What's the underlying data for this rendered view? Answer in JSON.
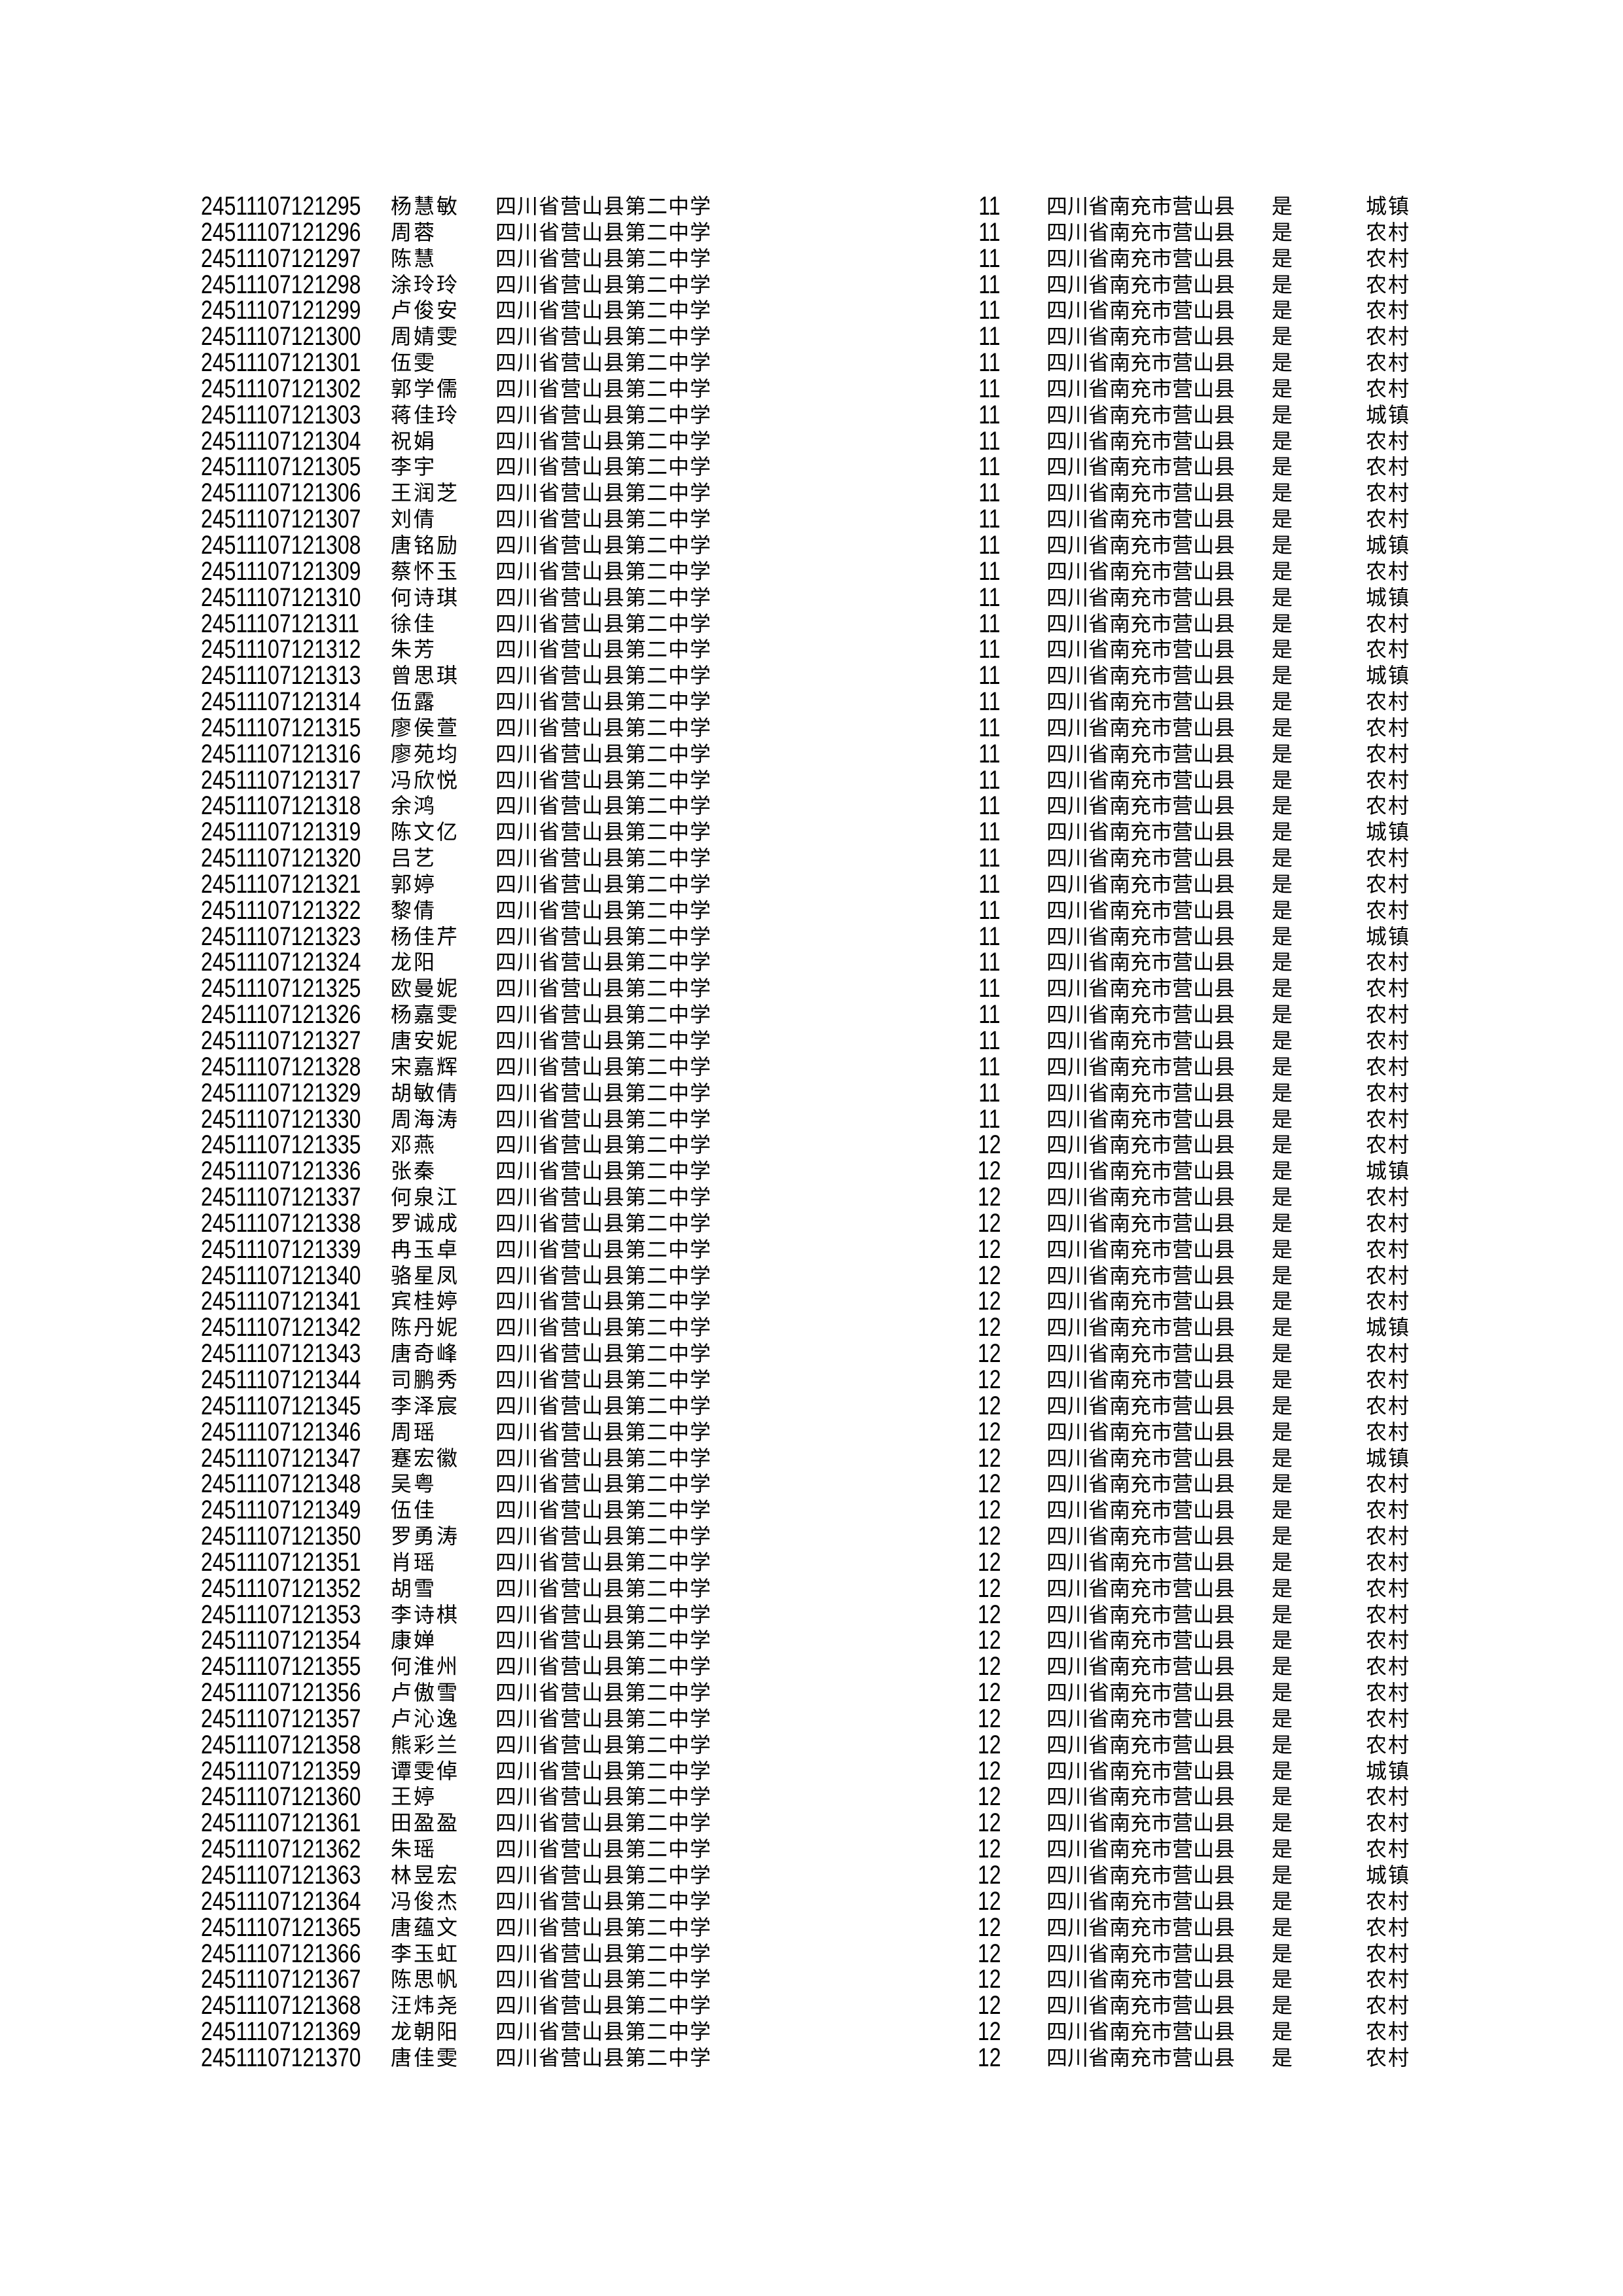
{
  "page": {
    "background": "#ffffff",
    "text_color": "#000000"
  },
  "table": {
    "columns": [
      "exam_id",
      "name",
      "school",
      "grade",
      "region",
      "confirm_flag",
      "residence_type"
    ],
    "rows": [
      [
        "24511107121295",
        "杨慧敏",
        "四川省营山县第二中学",
        "11",
        "四川省南充市营山县",
        "是",
        "城镇"
      ],
      [
        "24511107121296",
        "周蓉",
        "四川省营山县第二中学",
        "11",
        "四川省南充市营山县",
        "是",
        "农村"
      ],
      [
        "24511107121297",
        "陈慧",
        "四川省营山县第二中学",
        "11",
        "四川省南充市营山县",
        "是",
        "农村"
      ],
      [
        "24511107121298",
        "涂玲玲",
        "四川省营山县第二中学",
        "11",
        "四川省南充市营山县",
        "是",
        "农村"
      ],
      [
        "24511107121299",
        "卢俊安",
        "四川省营山县第二中学",
        "11",
        "四川省南充市营山县",
        "是",
        "农村"
      ],
      [
        "24511107121300",
        "周婧雯",
        "四川省营山县第二中学",
        "11",
        "四川省南充市营山县",
        "是",
        "农村"
      ],
      [
        "24511107121301",
        "伍雯",
        "四川省营山县第二中学",
        "11",
        "四川省南充市营山县",
        "是",
        "农村"
      ],
      [
        "24511107121302",
        "郭学儒",
        "四川省营山县第二中学",
        "11",
        "四川省南充市营山县",
        "是",
        "农村"
      ],
      [
        "24511107121303",
        "蒋佳玲",
        "四川省营山县第二中学",
        "11",
        "四川省南充市营山县",
        "是",
        "城镇"
      ],
      [
        "24511107121304",
        "祝娟",
        "四川省营山县第二中学",
        "11",
        "四川省南充市营山县",
        "是",
        "农村"
      ],
      [
        "24511107121305",
        "李宇",
        "四川省营山县第二中学",
        "11",
        "四川省南充市营山县",
        "是",
        "农村"
      ],
      [
        "24511107121306",
        "王润芝",
        "四川省营山县第二中学",
        "11",
        "四川省南充市营山县",
        "是",
        "农村"
      ],
      [
        "24511107121307",
        "刘倩",
        "四川省营山县第二中学",
        "11",
        "四川省南充市营山县",
        "是",
        "农村"
      ],
      [
        "24511107121308",
        "唐铭励",
        "四川省营山县第二中学",
        "11",
        "四川省南充市营山县",
        "是",
        "城镇"
      ],
      [
        "24511107121309",
        "蔡怀玉",
        "四川省营山县第二中学",
        "11",
        "四川省南充市营山县",
        "是",
        "农村"
      ],
      [
        "24511107121310",
        "何诗琪",
        "四川省营山县第二中学",
        "11",
        "四川省南充市营山县",
        "是",
        "城镇"
      ],
      [
        "24511107121311",
        "徐佳",
        "四川省营山县第二中学",
        "11",
        "四川省南充市营山县",
        "是",
        "农村"
      ],
      [
        "24511107121312",
        "朱芳",
        "四川省营山县第二中学",
        "11",
        "四川省南充市营山县",
        "是",
        "农村"
      ],
      [
        "24511107121313",
        "曾思琪",
        "四川省营山县第二中学",
        "11",
        "四川省南充市营山县",
        "是",
        "城镇"
      ],
      [
        "24511107121314",
        "伍露",
        "四川省营山县第二中学",
        "11",
        "四川省南充市营山县",
        "是",
        "农村"
      ],
      [
        "24511107121315",
        "廖侯萱",
        "四川省营山县第二中学",
        "11",
        "四川省南充市营山县",
        "是",
        "农村"
      ],
      [
        "24511107121316",
        "廖苑均",
        "四川省营山县第二中学",
        "11",
        "四川省南充市营山县",
        "是",
        "农村"
      ],
      [
        "24511107121317",
        "冯欣悦",
        "四川省营山县第二中学",
        "11",
        "四川省南充市营山县",
        "是",
        "农村"
      ],
      [
        "24511107121318",
        "余鸿",
        "四川省营山县第二中学",
        "11",
        "四川省南充市营山县",
        "是",
        "农村"
      ],
      [
        "24511107121319",
        "陈文亿",
        "四川省营山县第二中学",
        "11",
        "四川省南充市营山县",
        "是",
        "城镇"
      ],
      [
        "24511107121320",
        "吕艺",
        "四川省营山县第二中学",
        "11",
        "四川省南充市营山县",
        "是",
        "农村"
      ],
      [
        "24511107121321",
        "郭婷",
        "四川省营山县第二中学",
        "11",
        "四川省南充市营山县",
        "是",
        "农村"
      ],
      [
        "24511107121322",
        "黎倩",
        "四川省营山县第二中学",
        "11",
        "四川省南充市营山县",
        "是",
        "农村"
      ],
      [
        "24511107121323",
        "杨佳芹",
        "四川省营山县第二中学",
        "11",
        "四川省南充市营山县",
        "是",
        "城镇"
      ],
      [
        "24511107121324",
        "龙阳",
        "四川省营山县第二中学",
        "11",
        "四川省南充市营山县",
        "是",
        "农村"
      ],
      [
        "24511107121325",
        "欧曼妮",
        "四川省营山县第二中学",
        "11",
        "四川省南充市营山县",
        "是",
        "农村"
      ],
      [
        "24511107121326",
        "杨嘉雯",
        "四川省营山县第二中学",
        "11",
        "四川省南充市营山县",
        "是",
        "农村"
      ],
      [
        "24511107121327",
        "唐安妮",
        "四川省营山县第二中学",
        "11",
        "四川省南充市营山县",
        "是",
        "农村"
      ],
      [
        "24511107121328",
        "宋嘉辉",
        "四川省营山县第二中学",
        "11",
        "四川省南充市营山县",
        "是",
        "农村"
      ],
      [
        "24511107121329",
        "胡敏倩",
        "四川省营山县第二中学",
        "11",
        "四川省南充市营山县",
        "是",
        "农村"
      ],
      [
        "24511107121330",
        "周海涛",
        "四川省营山县第二中学",
        "11",
        "四川省南充市营山县",
        "是",
        "农村"
      ],
      [
        "24511107121335",
        "邓燕",
        "四川省营山县第二中学",
        "12",
        "四川省南充市营山县",
        "是",
        "农村"
      ],
      [
        "24511107121336",
        "张秦",
        "四川省营山县第二中学",
        "12",
        "四川省南充市营山县",
        "是",
        "城镇"
      ],
      [
        "24511107121337",
        "何泉江",
        "四川省营山县第二中学",
        "12",
        "四川省南充市营山县",
        "是",
        "农村"
      ],
      [
        "24511107121338",
        "罗诚成",
        "四川省营山县第二中学",
        "12",
        "四川省南充市营山县",
        "是",
        "农村"
      ],
      [
        "24511107121339",
        "冉玉卓",
        "四川省营山县第二中学",
        "12",
        "四川省南充市营山县",
        "是",
        "农村"
      ],
      [
        "24511107121340",
        "骆星凤",
        "四川省营山县第二中学",
        "12",
        "四川省南充市营山县",
        "是",
        "农村"
      ],
      [
        "24511107121341",
        "宾桂婷",
        "四川省营山县第二中学",
        "12",
        "四川省南充市营山县",
        "是",
        "农村"
      ],
      [
        "24511107121342",
        "陈丹妮",
        "四川省营山县第二中学",
        "12",
        "四川省南充市营山县",
        "是",
        "城镇"
      ],
      [
        "24511107121343",
        "唐奇峰",
        "四川省营山县第二中学",
        "12",
        "四川省南充市营山县",
        "是",
        "农村"
      ],
      [
        "24511107121344",
        "司鹏秀",
        "四川省营山县第二中学",
        "12",
        "四川省南充市营山县",
        "是",
        "农村"
      ],
      [
        "24511107121345",
        "李泽宸",
        "四川省营山县第二中学",
        "12",
        "四川省南充市营山县",
        "是",
        "农村"
      ],
      [
        "24511107121346",
        "周瑶",
        "四川省营山县第二中学",
        "12",
        "四川省南充市营山县",
        "是",
        "农村"
      ],
      [
        "24511107121347",
        "蹇宏徽",
        "四川省营山县第二中学",
        "12",
        "四川省南充市营山县",
        "是",
        "城镇"
      ],
      [
        "24511107121348",
        "吴粤",
        "四川省营山县第二中学",
        "12",
        "四川省南充市营山县",
        "是",
        "农村"
      ],
      [
        "24511107121349",
        "伍佳",
        "四川省营山县第二中学",
        "12",
        "四川省南充市营山县",
        "是",
        "农村"
      ],
      [
        "24511107121350",
        "罗勇涛",
        "四川省营山县第二中学",
        "12",
        "四川省南充市营山县",
        "是",
        "农村"
      ],
      [
        "24511107121351",
        "肖瑶",
        "四川省营山县第二中学",
        "12",
        "四川省南充市营山县",
        "是",
        "农村"
      ],
      [
        "24511107121352",
        "胡雪",
        "四川省营山县第二中学",
        "12",
        "四川省南充市营山县",
        "是",
        "农村"
      ],
      [
        "24511107121353",
        "李诗棋",
        "四川省营山县第二中学",
        "12",
        "四川省南充市营山县",
        "是",
        "农村"
      ],
      [
        "24511107121354",
        "康婵",
        "四川省营山县第二中学",
        "12",
        "四川省南充市营山县",
        "是",
        "农村"
      ],
      [
        "24511107121355",
        "何淮州",
        "四川省营山县第二中学",
        "12",
        "四川省南充市营山县",
        "是",
        "农村"
      ],
      [
        "24511107121356",
        "卢傲雪",
        "四川省营山县第二中学",
        "12",
        "四川省南充市营山县",
        "是",
        "农村"
      ],
      [
        "24511107121357",
        "卢沁逸",
        "四川省营山县第二中学",
        "12",
        "四川省南充市营山县",
        "是",
        "农村"
      ],
      [
        "24511107121358",
        "熊彩兰",
        "四川省营山县第二中学",
        "12",
        "四川省南充市营山县",
        "是",
        "农村"
      ],
      [
        "24511107121359",
        "谭雯倬",
        "四川省营山县第二中学",
        "12",
        "四川省南充市营山县",
        "是",
        "城镇"
      ],
      [
        "24511107121360",
        "王婷",
        "四川省营山县第二中学",
        "12",
        "四川省南充市营山县",
        "是",
        "农村"
      ],
      [
        "24511107121361",
        "田盈盈",
        "四川省营山县第二中学",
        "12",
        "四川省南充市营山县",
        "是",
        "农村"
      ],
      [
        "24511107121362",
        "朱瑶",
        "四川省营山县第二中学",
        "12",
        "四川省南充市营山县",
        "是",
        "农村"
      ],
      [
        "24511107121363",
        "林昱宏",
        "四川省营山县第二中学",
        "12",
        "四川省南充市营山县",
        "是",
        "城镇"
      ],
      [
        "24511107121364",
        "冯俊杰",
        "四川省营山县第二中学",
        "12",
        "四川省南充市营山县",
        "是",
        "农村"
      ],
      [
        "24511107121365",
        "唐蕴文",
        "四川省营山县第二中学",
        "12",
        "四川省南充市营山县",
        "是",
        "农村"
      ],
      [
        "24511107121366",
        "李玉虹",
        "四川省营山县第二中学",
        "12",
        "四川省南充市营山县",
        "是",
        "农村"
      ],
      [
        "24511107121367",
        "陈思帆",
        "四川省营山县第二中学",
        "12",
        "四川省南充市营山县",
        "是",
        "农村"
      ],
      [
        "24511107121368",
        "汪炜尧",
        "四川省营山县第二中学",
        "12",
        "四川省南充市营山县",
        "是",
        "农村"
      ],
      [
        "24511107121369",
        "龙朝阳",
        "四川省营山县第二中学",
        "12",
        "四川省南充市营山县",
        "是",
        "农村"
      ],
      [
        "24511107121370",
        "唐佳雯",
        "四川省营山县第二中学",
        "12",
        "四川省南充市营山县",
        "是",
        "农村"
      ]
    ]
  }
}
